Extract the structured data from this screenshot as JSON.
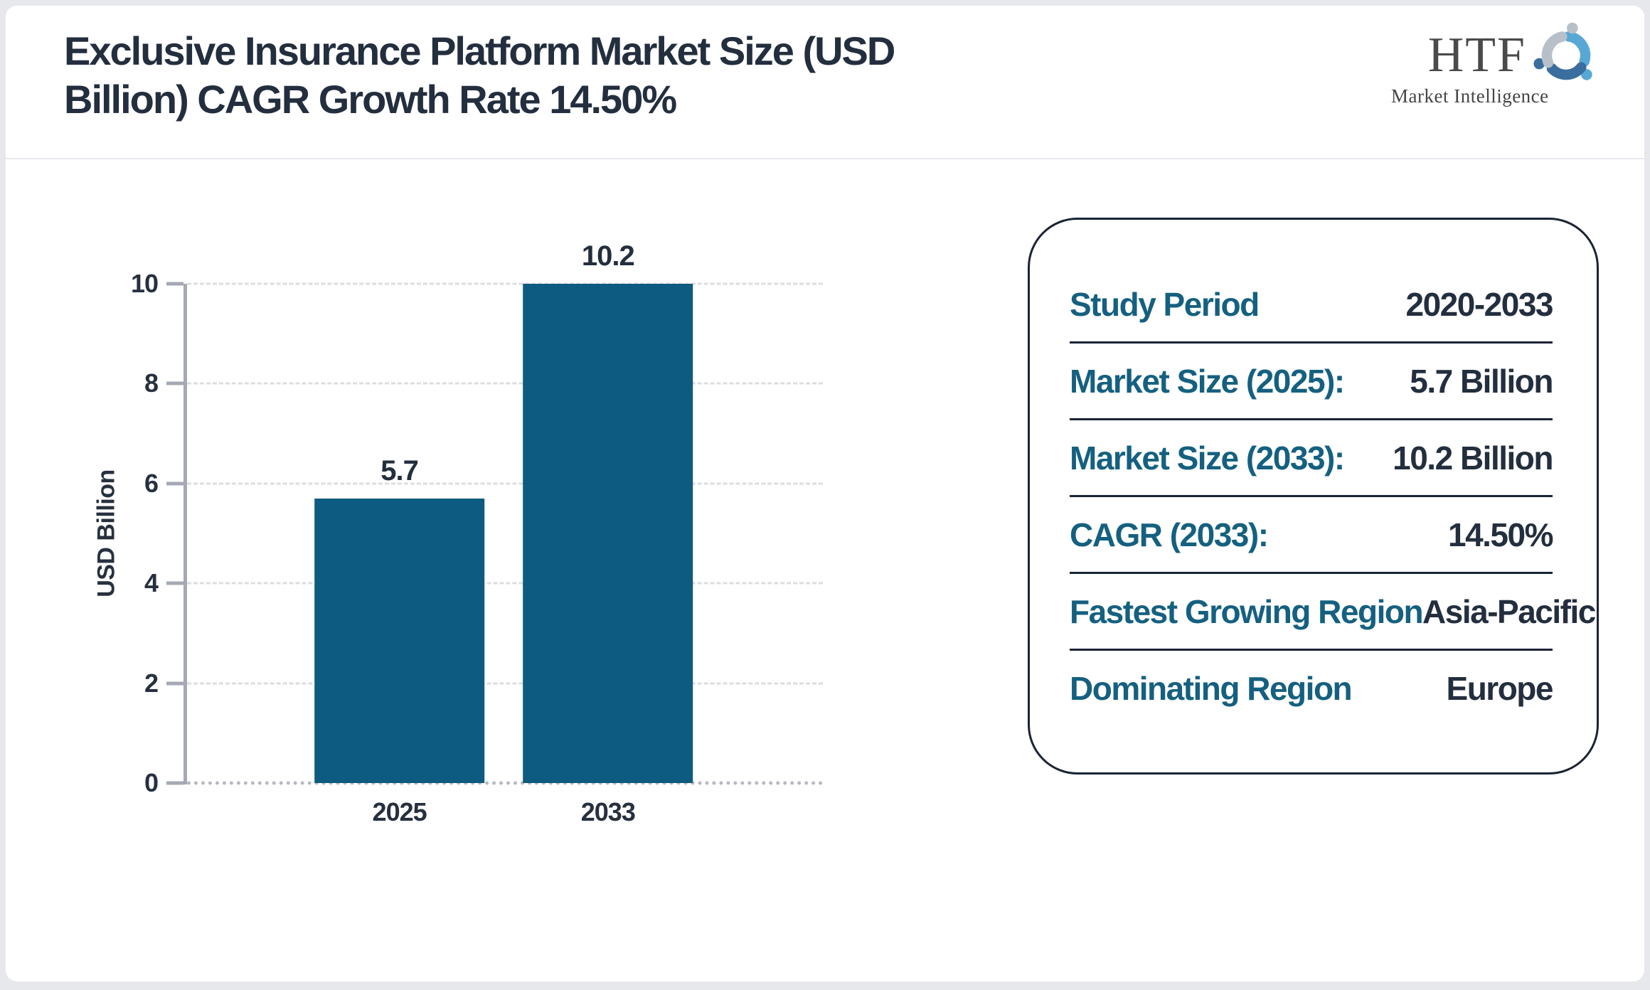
{
  "header": {
    "title_lines": [
      "Exclusive Insurance Platform Market Size (USD",
      "Billion) CAGR Growth Rate 14.50%"
    ],
    "logo": {
      "brand": "HTF",
      "tagline": "Market Intelligence",
      "swirl_colors": [
        "#57a8d5",
        "#3a6e9e",
        "#b7c0c9"
      ]
    }
  },
  "chart_data": {
    "type": "bar",
    "categories": [
      "2025",
      "2033"
    ],
    "values": [
      5.7,
      10.2
    ],
    "bar_labels": [
      "5.7",
      "10.2"
    ],
    "title": "",
    "xlabel": "",
    "ylabel": "USD Billion",
    "ylim": [
      0,
      10
    ],
    "yticks": [
      0,
      2,
      4,
      6,
      8,
      10
    ],
    "grid": "horizontal dashed",
    "legend": "none",
    "bar_color": "#0d5b80"
  },
  "panel": {
    "rows": [
      {
        "label": "Study Period",
        "value": "2020-2033"
      },
      {
        "label": "Market Size (2025):",
        "value": "5.7 Billion"
      },
      {
        "label": "Market Size (2033):",
        "value": "10.2 Billion"
      },
      {
        "label": "CAGR (2033):",
        "value": "14.50%"
      },
      {
        "label": "Fastest Growing Region",
        "value": "Asia-Pacific"
      },
      {
        "label": "Dominating Region",
        "value": "Europe"
      }
    ]
  },
  "colors": {
    "bar_teal": "#0d5b80",
    "panel_label_teal": "#156080",
    "text_dark": "#232e3e",
    "axis_gray": "#a4a9b3",
    "gridline_gray": "#dcdde0",
    "panel_border_navy": "#1b2435",
    "frame_gray": "#e7e8ec"
  }
}
